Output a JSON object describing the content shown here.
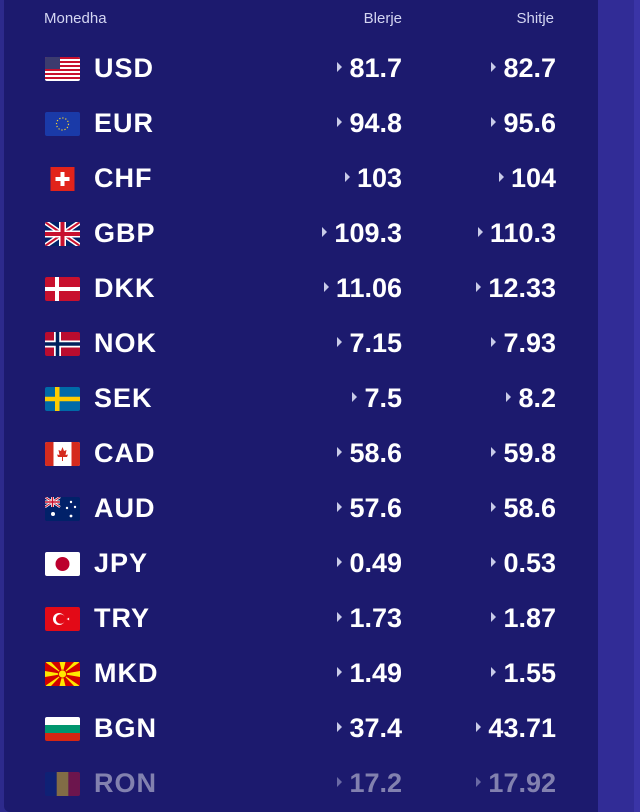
{
  "header": {
    "currency": "Monedha",
    "buy": "Blerje",
    "sell": "Shitje"
  },
  "rows": [
    {
      "code": "USD",
      "buy": "81.7",
      "sell": "82.7",
      "flag": "us-flag-icon"
    },
    {
      "code": "EUR",
      "buy": "94.8",
      "sell": "95.6",
      "flag": "eu-flag-icon"
    },
    {
      "code": "CHF",
      "buy": "103",
      "sell": "104",
      "flag": "ch-flag-icon"
    },
    {
      "code": "GBP",
      "buy": "109.3",
      "sell": "110.3",
      "flag": "gb-flag-icon"
    },
    {
      "code": "DKK",
      "buy": "11.06",
      "sell": "12.33",
      "flag": "dk-flag-icon"
    },
    {
      "code": "NOK",
      "buy": "7.15",
      "sell": "7.93",
      "flag": "no-flag-icon"
    },
    {
      "code": "SEK",
      "buy": "7.5",
      "sell": "8.2",
      "flag": "se-flag-icon"
    },
    {
      "code": "CAD",
      "buy": "58.6",
      "sell": "59.8",
      "flag": "ca-flag-icon"
    },
    {
      "code": "AUD",
      "buy": "57.6",
      "sell": "58.6",
      "flag": "au-flag-icon"
    },
    {
      "code": "JPY",
      "buy": "0.49",
      "sell": "0.53",
      "flag": "jp-flag-icon"
    },
    {
      "code": "TRY",
      "buy": "1.73",
      "sell": "1.87",
      "flag": "tr-flag-icon"
    },
    {
      "code": "MKD",
      "buy": "1.49",
      "sell": "1.55",
      "flag": "mk-flag-icon"
    },
    {
      "code": "BGN",
      "buy": "37.4",
      "sell": "43.71",
      "flag": "bg-flag-icon"
    },
    {
      "code": "RON",
      "buy": "17.2",
      "sell": "17.92",
      "flag": "ro-flag-icon"
    }
  ],
  "colors": {
    "panel": "#1c1a6e",
    "background": "#2d2a8c",
    "text": "#ffffff"
  }
}
